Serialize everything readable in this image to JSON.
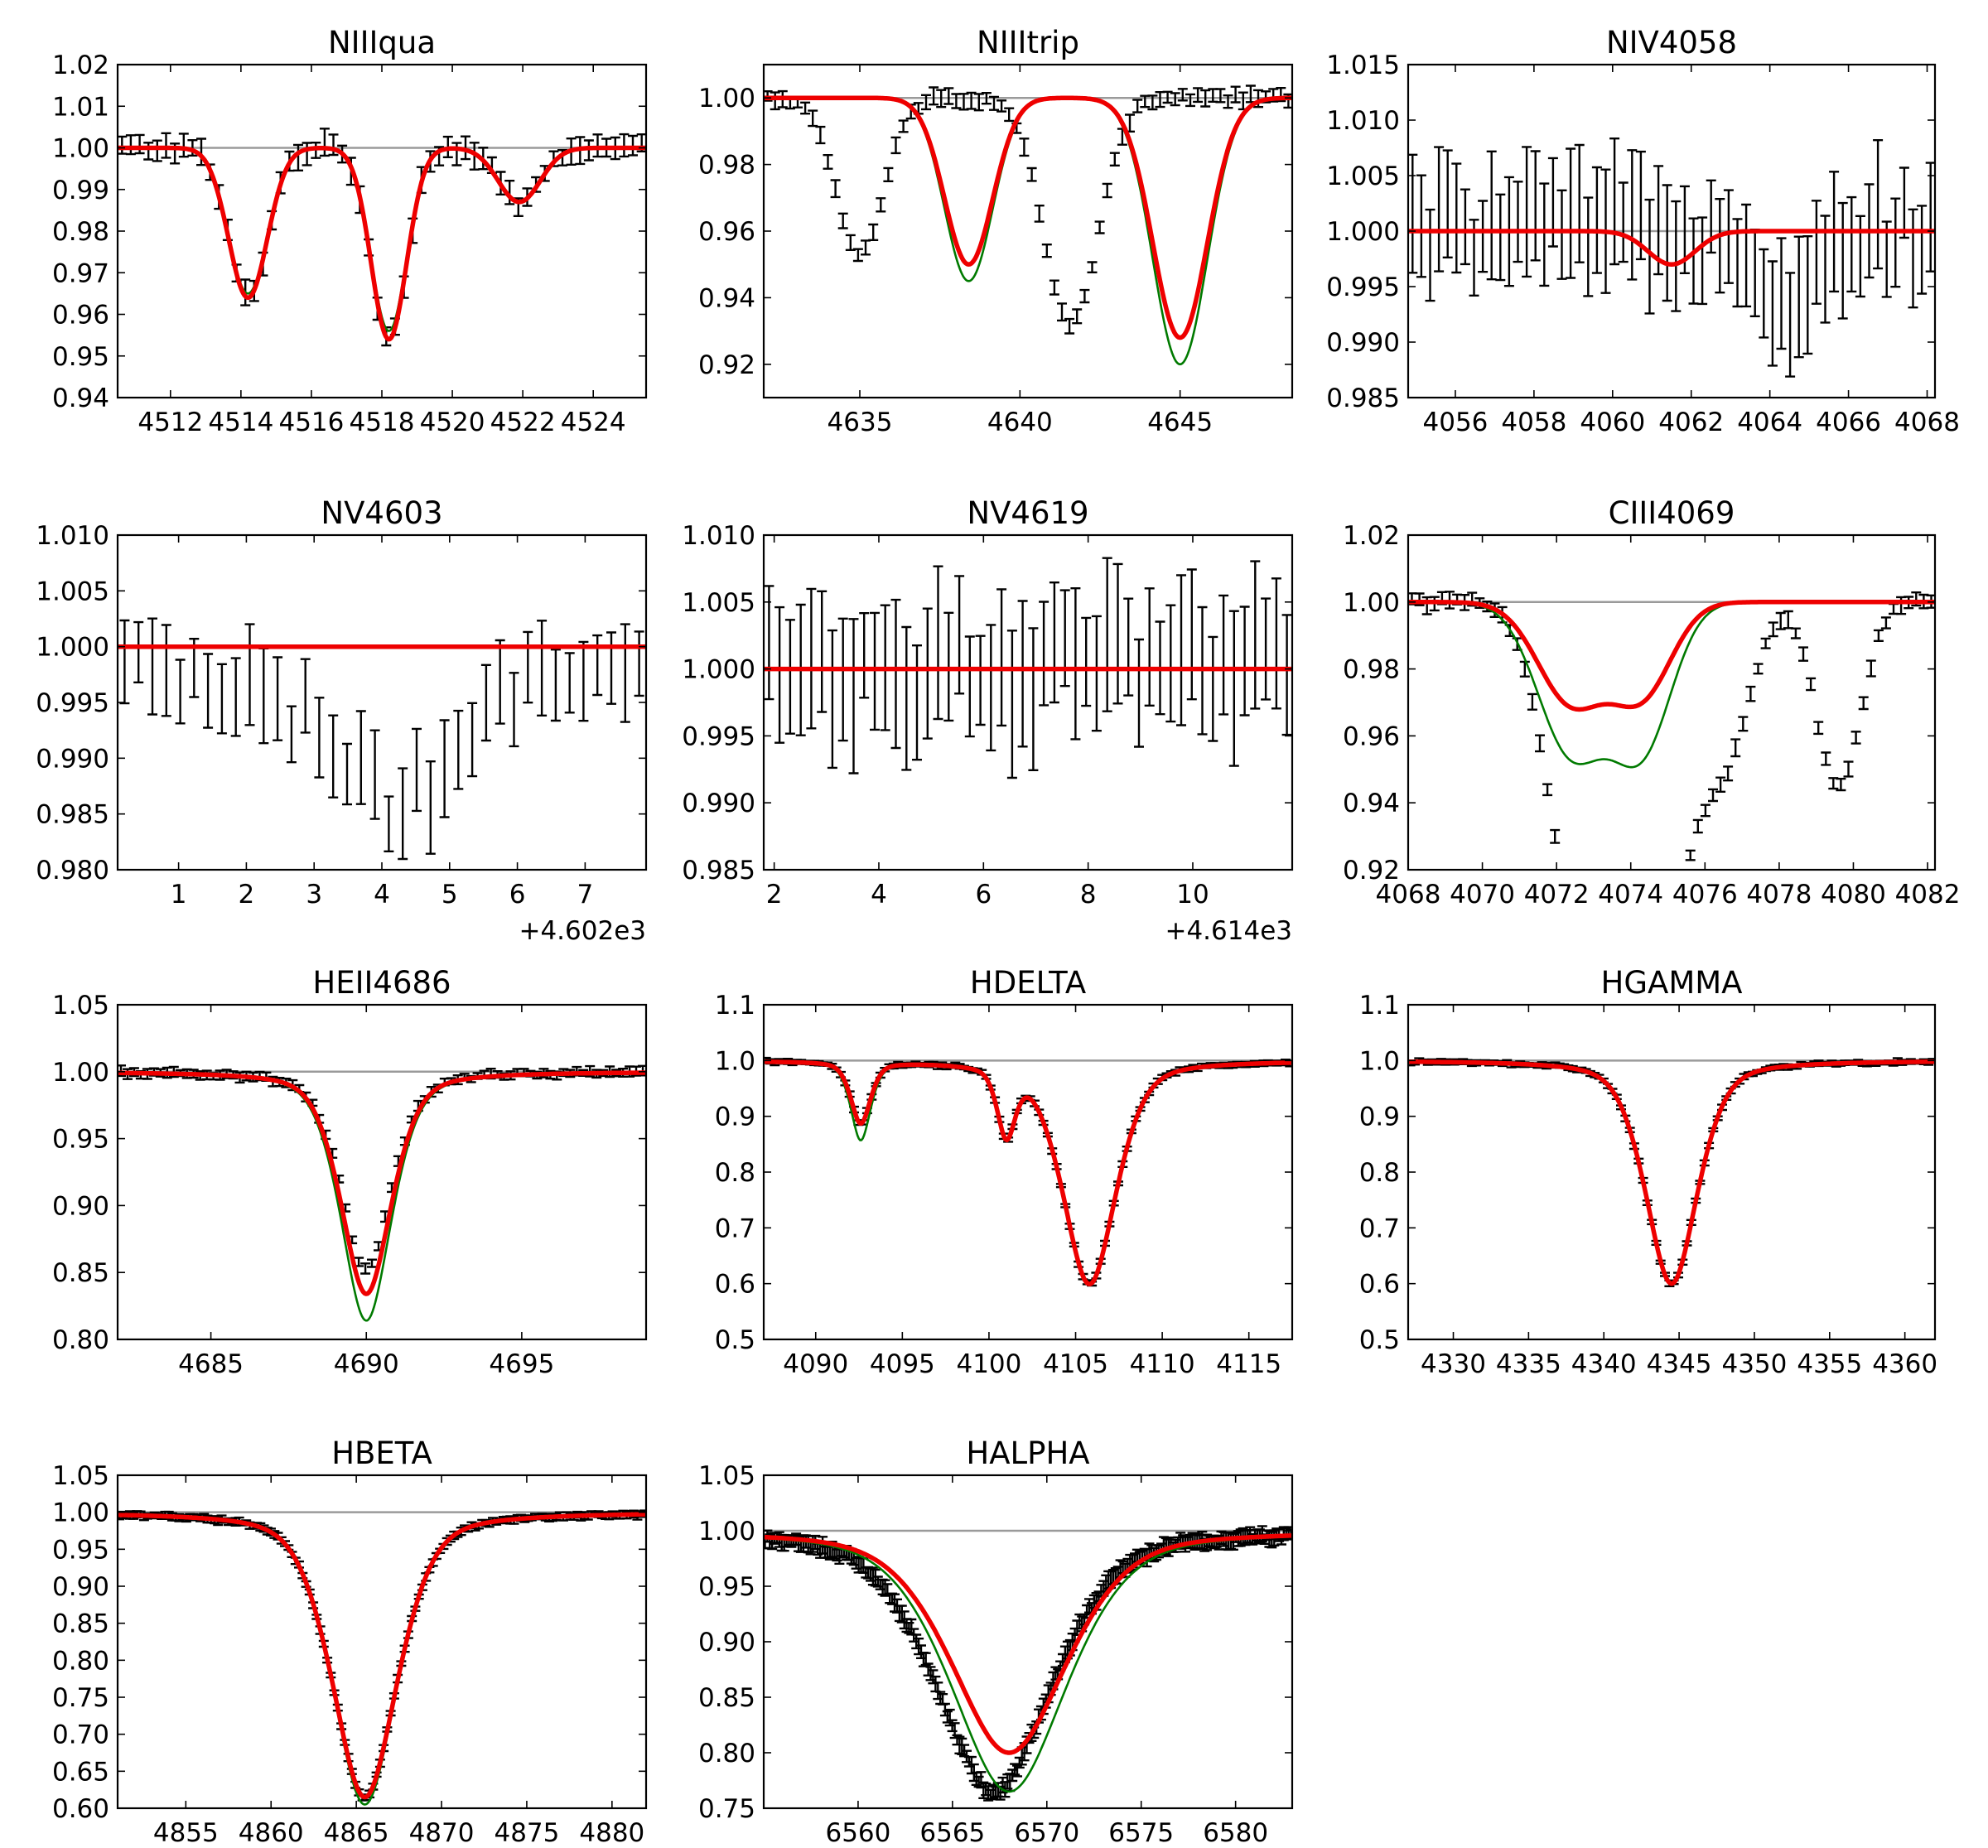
{
  "figure": {
    "type": "spectral line fit grid",
    "colors": {
      "observed": "#000000",
      "model_primary": "#ee0000",
      "model_secondary": "#007a00",
      "continuum": "#9a9a9a"
    }
  },
  "chart_data": [
    {
      "type": "line",
      "title": "NIIIqua",
      "xlim": [
        4510.5,
        4525.5
      ],
      "ylim": [
        0.94,
        1.02
      ],
      "xticks": [
        4512,
        4514,
        4516,
        4518,
        4520,
        4522,
        4524
      ],
      "xtick_labels": [
        "4512",
        "4514",
        "4516",
        "4518",
        "4520",
        "4522",
        "4524"
      ],
      "yticks": [
        0.94,
        0.95,
        0.96,
        0.97,
        0.98,
        0.99,
        1.0,
        1.01,
        1.02
      ],
      "ytick_labels": [
        "0.94",
        "0.95",
        "0.96",
        "0.97",
        "0.98",
        "0.99",
        "1.00",
        "1.01",
        "1.02"
      ],
      "offset": "",
      "continuum": 1.0,
      "lines": [
        {
          "c": 4514.2,
          "w": 0.55,
          "d": 0.036,
          "g": 0.035
        },
        {
          "c": 4518.2,
          "w": 0.5,
          "d": 0.046,
          "g": 0.044
        },
        {
          "c": 4521.9,
          "w": 0.6,
          "d": 0.013,
          "g": 0.013
        }
      ],
      "lorentz": false,
      "data_shift": 0.0,
      "data_scale": 1.0,
      "err": 0.0025,
      "n_points": 60,
      "series": [
        {
          "name": "observed",
          "style": "errorbar"
        },
        {
          "name": "model_primary",
          "style": "red"
        },
        {
          "name": "model_secondary",
          "style": "green"
        }
      ]
    },
    {
      "type": "line",
      "title": "NIIItrip",
      "xlim": [
        4632,
        4648.5
      ],
      "ylim": [
        0.91,
        1.01
      ],
      "xticks": [
        4635,
        4640,
        4645
      ],
      "xtick_labels": [
        "4635",
        "4640",
        "4645"
      ],
      "yticks": [
        0.92,
        0.94,
        0.96,
        0.98,
        1.0
      ],
      "ytick_labels": [
        "0.92",
        "0.94",
        "0.96",
        "0.98",
        "1.00"
      ],
      "offset": "",
      "continuum": 1.0,
      "lines": [
        {
          "c": 4638.4,
          "w": 0.75,
          "d": 0.05,
          "g": 0.055
        },
        {
          "c": 4645.0,
          "w": 0.85,
          "d": 0.072,
          "g": 0.08
        }
      ],
      "lorentz": false,
      "data_shift": -3.4,
      "data_scale": 0.85,
      "err": 0.002,
      "n_points": 70,
      "series": [
        {
          "name": "observed",
          "style": "errorbar"
        },
        {
          "name": "model_primary",
          "style": "red"
        },
        {
          "name": "model_secondary",
          "style": "green"
        }
      ]
    },
    {
      "type": "line",
      "title": "NIV4058",
      "xlim": [
        4054.8,
        4068.2
      ],
      "ylim": [
        0.985,
        1.015
      ],
      "xticks": [
        4056,
        4058,
        4060,
        4062,
        4064,
        4066,
        4068
      ],
      "xtick_labels": [
        "4056",
        "4058",
        "4060",
        "4062",
        "4064",
        "4066",
        "4068"
      ],
      "yticks": [
        0.985,
        0.99,
        0.995,
        1.0,
        1.005,
        1.01,
        1.015
      ],
      "ytick_labels": [
        "0.985",
        "0.990",
        "0.995",
        "1.000",
        "1.005",
        "1.010",
        "1.015"
      ],
      "offset": "",
      "continuum": 1.0,
      "lines": [
        {
          "c": 4061.5,
          "w": 0.6,
          "d": 0.003,
          "g": 0.003
        }
      ],
      "lorentz": false,
      "data_shift": 3.0,
      "data_scale": 2.2,
      "err": 0.0045,
      "n_points": 60,
      "series": [
        {
          "name": "observed",
          "style": "errorbar"
        },
        {
          "name": "model_primary",
          "style": "red"
        },
        {
          "name": "model_secondary",
          "style": "green"
        }
      ]
    },
    {
      "type": "line",
      "title": "NV4603",
      "xlim": [
        0.1,
        7.9
      ],
      "ylim": [
        0.98,
        1.01
      ],
      "xticks": [
        1,
        2,
        3,
        4,
        5,
        6,
        7
      ],
      "xtick_labels": [
        "1",
        "2",
        "3",
        "4",
        "5",
        "6",
        "7"
      ],
      "yticks": [
        0.98,
        0.985,
        0.99,
        0.995,
        1.0,
        1.005,
        1.01
      ],
      "ytick_labels": [
        "0.980",
        "0.985",
        "0.990",
        "0.995",
        "1.000",
        "1.005",
        "1.010"
      ],
      "offset": "+4.602e3",
      "continuum": 1.0,
      "lines": [
        {
          "c": 4.2,
          "w": 0.9,
          "d": 0.0,
          "g": 0.0
        }
      ],
      "lorentz": false,
      "data_shift": 0.0,
      "data_scale": 1.0,
      "data_dip": [
        4.2,
        0.9,
        0.011
      ],
      "err": 0.0035,
      "n_points": 38,
      "series": [
        {
          "name": "observed",
          "style": "errorbar"
        },
        {
          "name": "model_primary",
          "style": "red"
        },
        {
          "name": "model_secondary",
          "style": "green"
        }
      ]
    },
    {
      "type": "line",
      "title": "NV4619",
      "xlim": [
        1.8,
        11.9
      ],
      "ylim": [
        0.985,
        1.01
      ],
      "xticks": [
        2,
        4,
        6,
        8,
        10
      ],
      "xtick_labels": [
        "2",
        "4",
        "6",
        "8",
        "10"
      ],
      "yticks": [
        0.985,
        0.99,
        0.995,
        1.0,
        1.005,
        1.01
      ],
      "ytick_labels": [
        "0.985",
        "0.990",
        "0.995",
        "1.000",
        "1.005",
        "1.010"
      ],
      "offset": "+4.614e3",
      "continuum": 1.0,
      "lines": [
        {
          "c": 6.0,
          "w": 1.0,
          "d": 0.0,
          "g": 0.0
        }
      ],
      "lorentz": false,
      "data_shift": 0.0,
      "data_scale": 1.0,
      "err": 0.0045,
      "n_points": 50,
      "series": [
        {
          "name": "observed",
          "style": "errorbar"
        },
        {
          "name": "model_primary",
          "style": "red"
        },
        {
          "name": "model_secondary",
          "style": "green"
        }
      ]
    },
    {
      "type": "line",
      "title": "CIII4069",
      "xlim": [
        4068,
        4082.2
      ],
      "ylim": [
        0.92,
        1.02
      ],
      "xticks": [
        4068,
        4070,
        4072,
        4074,
        4076,
        4078,
        4080,
        4082
      ],
      "xtick_labels": [
        "4068",
        "4070",
        "4072",
        "4074",
        "4076",
        "4078",
        "4080",
        "4082"
      ],
      "yticks": [
        0.92,
        0.94,
        0.96,
        0.98,
        1.0,
        1.02
      ],
      "ytick_labels": [
        "0.92",
        "0.94",
        "0.96",
        "0.98",
        "1.00",
        "1.02"
      ],
      "offset": "",
      "continuum": 1.0,
      "lines": [
        {
          "c": 4072.4,
          "w": 0.9,
          "d": 0.03,
          "g": 0.045
        },
        {
          "c": 4074.3,
          "w": 0.8,
          "d": 0.027,
          "g": 0.043
        }
      ],
      "lorentz": false,
      "data_shift": 0.4,
      "data_scale": 2.4,
      "extra_dips": [
        [
          4076.5,
          0.7,
          0.045
        ],
        [
          4079.6,
          0.6,
          0.055
        ]
      ],
      "err": 0.002,
      "n_points": 70,
      "series": [
        {
          "name": "observed",
          "style": "errorbar"
        },
        {
          "name": "model_primary",
          "style": "red"
        },
        {
          "name": "model_secondary",
          "style": "green"
        }
      ]
    },
    {
      "type": "line",
      "title": "HEII4686",
      "xlim": [
        4682,
        4699
      ],
      "ylim": [
        0.8,
        1.05
      ],
      "xticks": [
        4685,
        4690,
        4695
      ],
      "xtick_labels": [
        "4685",
        "4690",
        "4695"
      ],
      "yticks": [
        0.8,
        0.85,
        0.9,
        0.95,
        1.0,
        1.05
      ],
      "ytick_labels": [
        "0.80",
        "0.85",
        "0.90",
        "0.95",
        "1.00",
        "1.05"
      ],
      "offset": "",
      "continuum": 1.0,
      "lines": [
        {
          "c": 4690.0,
          "w": 0.85,
          "d": 0.166,
          "g": 0.186
        }
      ],
      "lorentz": true,
      "data_shift": 0.0,
      "data_scale": 0.8,
      "err": 0.003,
      "n_points": 80,
      "series": [
        {
          "name": "observed",
          "style": "errorbar"
        },
        {
          "name": "model_primary",
          "style": "red"
        },
        {
          "name": "model_secondary",
          "style": "green"
        }
      ]
    },
    {
      "type": "line",
      "title": "HDELTA",
      "xlim": [
        4087,
        4117.5
      ],
      "ylim": [
        0.5,
        1.1
      ],
      "xticks": [
        4090,
        4095,
        4100,
        4105,
        4110,
        4115
      ],
      "xtick_labels": [
        "4090",
        "4095",
        "4100",
        "4105",
        "4110",
        "4115"
      ],
      "yticks": [
        0.5,
        0.6,
        0.7,
        0.8,
        0.9,
        1.0,
        1.1
      ],
      "ytick_labels": [
        "0.5",
        "0.6",
        "0.7",
        "0.8",
        "0.9",
        "1.0",
        "1.1"
      ],
      "offset": "",
      "continuum": 1.0,
      "lines": [
        {
          "c": 4092.6,
          "w": 0.6,
          "d": 0.11,
          "g": 0.14
        },
        {
          "c": 4101.0,
          "w": 0.55,
          "d": 0.12,
          "g": 0.12
        },
        {
          "c": 4105.8,
          "w": 1.6,
          "d": 0.4,
          "g": 0.4
        }
      ],
      "lorentz": true,
      "data_shift": 0.0,
      "data_scale": 1.0,
      "err": 0.004,
      "n_points": 120,
      "series": [
        {
          "name": "observed",
          "style": "errorbar"
        },
        {
          "name": "model_primary",
          "style": "red"
        },
        {
          "name": "model_secondary",
          "style": "green"
        }
      ]
    },
    {
      "type": "line",
      "title": "HGAMMA",
      "xlim": [
        4327,
        4362
      ],
      "ylim": [
        0.5,
        1.1
      ],
      "xticks": [
        4330,
        4335,
        4340,
        4345,
        4350,
        4355,
        4360
      ],
      "xtick_labels": [
        "4330",
        "4335",
        "4340",
        "4345",
        "4350",
        "4355",
        "4360"
      ],
      "yticks": [
        0.5,
        0.6,
        0.7,
        0.8,
        0.9,
        1.0,
        1.1
      ],
      "ytick_labels": [
        "0.5",
        "0.6",
        "0.7",
        "0.8",
        "0.9",
        "1.0",
        "1.1"
      ],
      "offset": "",
      "continuum": 1.0,
      "lines": [
        {
          "c": 4344.5,
          "w": 1.8,
          "d": 0.4,
          "g": 0.4
        }
      ],
      "lorentz": true,
      "data_shift": 0.0,
      "data_scale": 1.0,
      "err": 0.004,
      "n_points": 120,
      "series": [
        {
          "name": "observed",
          "style": "errorbar"
        },
        {
          "name": "model_primary",
          "style": "red"
        },
        {
          "name": "model_secondary",
          "style": "green"
        }
      ]
    },
    {
      "type": "line",
      "title": "HBETA",
      "xlim": [
        4851,
        4882
      ],
      "ylim": [
        0.6,
        1.05
      ],
      "xticks": [
        4855,
        4860,
        4865,
        4870,
        4875,
        4880
      ],
      "xtick_labels": [
        "4855",
        "4860",
        "4865",
        "4870",
        "4875",
        "4880"
      ],
      "yticks": [
        0.6,
        0.65,
        0.7,
        0.75,
        0.8,
        0.85,
        0.9,
        0.95,
        1.0,
        1.05
      ],
      "ytick_labels": [
        "0.60",
        "0.65",
        "0.70",
        "0.75",
        "0.80",
        "0.85",
        "0.90",
        "0.95",
        "1.00",
        "1.05"
      ],
      "offset": "",
      "continuum": 1.0,
      "lines": [
        {
          "c": 4865.5,
          "w": 2.0,
          "d": 0.385,
          "g": 0.395
        }
      ],
      "lorentz": true,
      "data_shift": 0.0,
      "data_scale": 1.0,
      "err": 0.004,
      "n_points": 150,
      "series": [
        {
          "name": "observed",
          "style": "errorbar"
        },
        {
          "name": "model_primary",
          "style": "red"
        },
        {
          "name": "model_secondary",
          "style": "green"
        }
      ]
    },
    {
      "type": "line",
      "title": "HALPHA",
      "xlim": [
        6555,
        6583
      ],
      "ylim": [
        0.75,
        1.05
      ],
      "xticks": [
        6560,
        6565,
        6570,
        6575,
        6580
      ],
      "xtick_labels": [
        "6560",
        "6565",
        "6570",
        "6575",
        "6580"
      ],
      "yticks": [
        0.75,
        0.8,
        0.85,
        0.9,
        0.95,
        1.0,
        1.05
      ],
      "ytick_labels": [
        "0.75",
        "0.80",
        "0.85",
        "0.90",
        "0.95",
        "1.00",
        "1.05"
      ],
      "offset": "",
      "continuum": 1.0,
      "lines": [
        {
          "c": 6568.0,
          "w": 3.2,
          "d": 0.2,
          "g": 0.235
        }
      ],
      "lorentz": true,
      "data_shift": -0.8,
      "data_scale": 1.0,
      "err": 0.006,
      "n_points": 220,
      "series": [
        {
          "name": "observed",
          "style": "errorbar"
        },
        {
          "name": "model_primary",
          "style": "red"
        },
        {
          "name": "model_secondary",
          "style": "green"
        }
      ]
    }
  ]
}
